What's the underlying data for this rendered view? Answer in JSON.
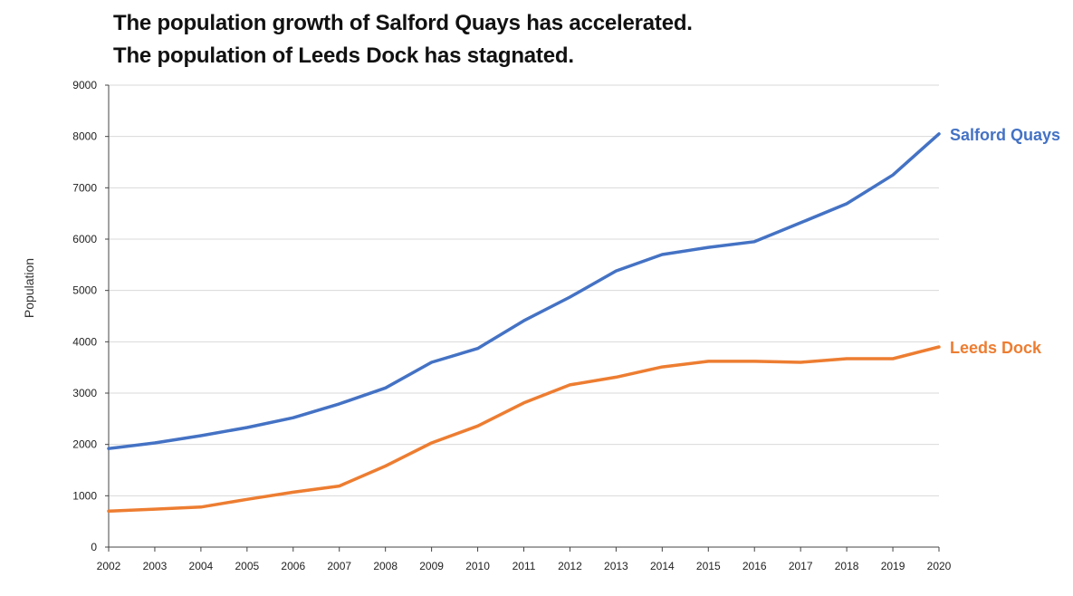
{
  "chart_data": {
    "type": "line",
    "title_lines": [
      "The population growth of Salford Quays has accelerated.",
      "The population of Leeds Dock has stagnated."
    ],
    "xlabel": "",
    "ylabel": "Population",
    "x": [
      2002,
      2003,
      2004,
      2005,
      2006,
      2007,
      2008,
      2009,
      2010,
      2011,
      2012,
      2013,
      2014,
      2015,
      2016,
      2017,
      2018,
      2019,
      2020
    ],
    "ylim": [
      0,
      9000
    ],
    "yticks": [
      0,
      1000,
      2000,
      3000,
      4000,
      5000,
      6000,
      7000,
      8000,
      9000
    ],
    "grid": true,
    "legend": "direct labels at line ends",
    "series": [
      {
        "name": "Salford Quays",
        "color": "#4472C4",
        "values": [
          1920,
          2030,
          2170,
          2330,
          2520,
          2790,
          3100,
          3600,
          3870,
          4410,
          4870,
          5380,
          5700,
          5840,
          5950,
          6320,
          6690,
          7250,
          8050
        ]
      },
      {
        "name": "Leeds Dock",
        "color": "#ED7D31",
        "values": [
          700,
          740,
          780,
          930,
          1070,
          1190,
          1580,
          2030,
          2360,
          2810,
          3160,
          3310,
          3510,
          3620,
          3620,
          3600,
          3670,
          3670,
          3900
        ]
      }
    ]
  }
}
